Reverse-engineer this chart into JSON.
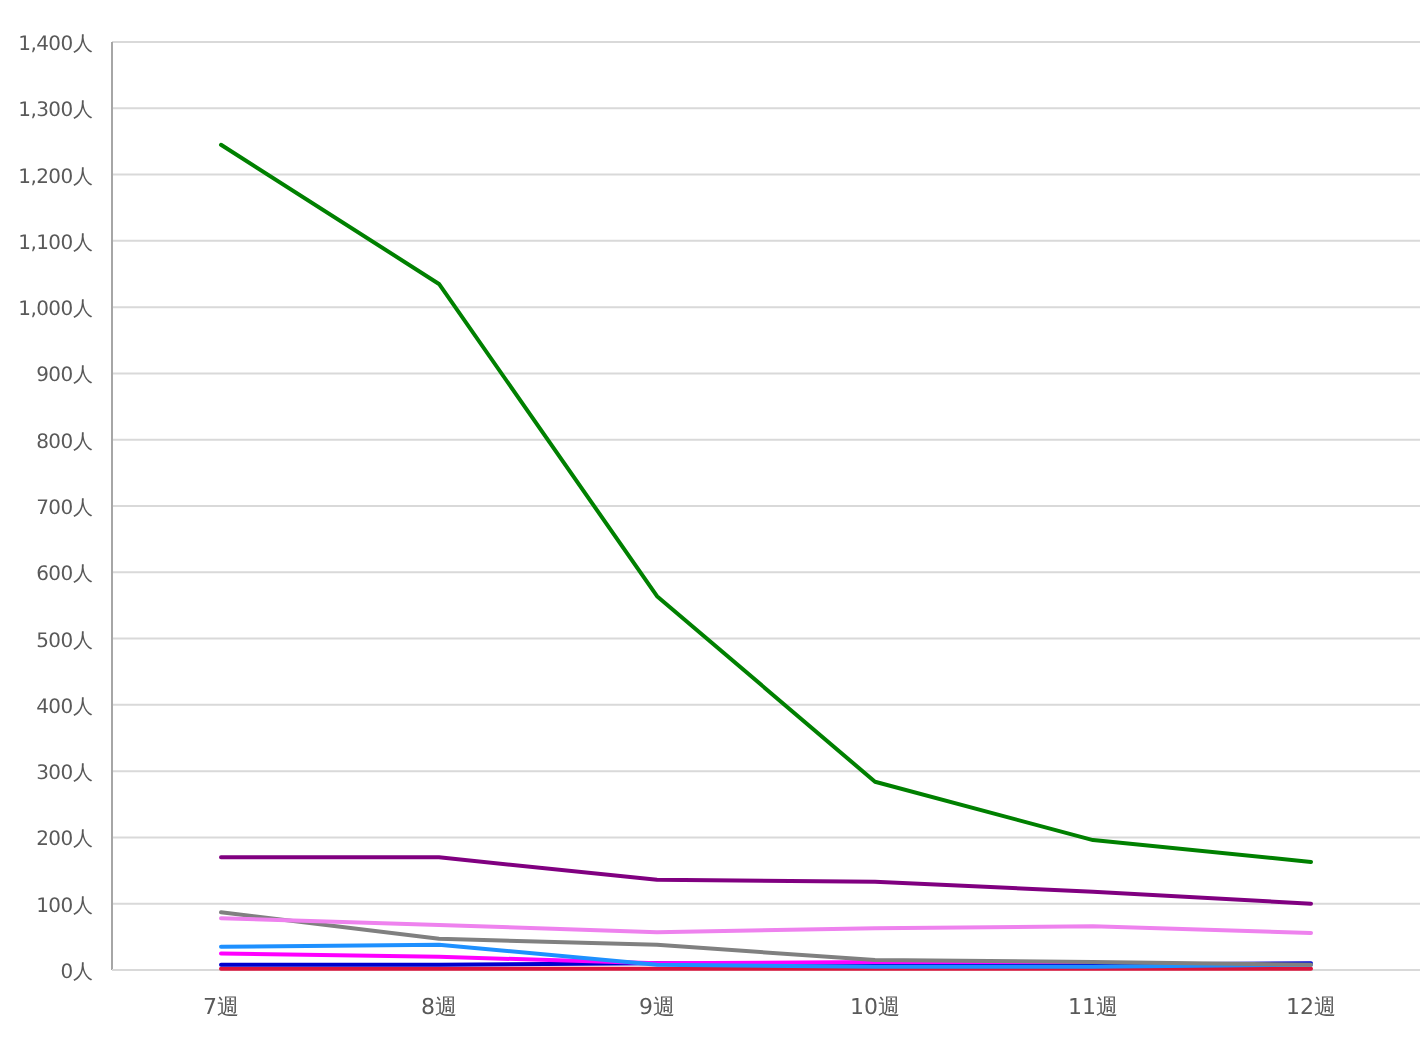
{
  "chart_data": {
    "type": "line",
    "categories": [
      "7週",
      "8週",
      "9週",
      "10週",
      "11週",
      "12週"
    ],
    "ylim": [
      0,
      1400
    ],
    "yticks": [
      {
        "value": 0,
        "label": "0人"
      },
      {
        "value": 100,
        "label": "100人"
      },
      {
        "value": 200,
        "label": "200人"
      },
      {
        "value": 300,
        "label": "300人"
      },
      {
        "value": 400,
        "label": "400人"
      },
      {
        "value": 500,
        "label": "500人"
      },
      {
        "value": 600,
        "label": "600人"
      },
      {
        "value": 700,
        "label": "700人"
      },
      {
        "value": 800,
        "label": "800人"
      },
      {
        "value": 900,
        "label": "900人"
      },
      {
        "value": 1000,
        "label": "1,000人"
      },
      {
        "value": 1100,
        "label": "1,100人"
      },
      {
        "value": 1200,
        "label": "1,200人"
      },
      {
        "value": 1300,
        "label": "1,300人"
      },
      {
        "value": 1400,
        "label": "1,400人"
      }
    ],
    "grid": "y",
    "marker": "none",
    "line_style": "solid",
    "series": [
      {
        "color": "#008000",
        "values": [
          1245,
          1035,
          564,
          284,
          196,
          163
        ]
      },
      {
        "color": "#800080",
        "values": [
          170,
          170,
          136,
          133,
          118,
          100
        ]
      },
      {
        "color": "#ee82ee",
        "values": [
          78,
          68,
          57,
          63,
          66,
          56
        ]
      },
      {
        "color": "#808080",
        "values": [
          87,
          47,
          38,
          15,
          12,
          8
        ]
      },
      {
        "color": "#1e90ff",
        "values": [
          35,
          38,
          8,
          5,
          5,
          8
        ]
      },
      {
        "color": "#ff00ff",
        "values": [
          25,
          20,
          10,
          12,
          12,
          null
        ]
      },
      {
        "color": "#0000cd",
        "values": [
          8,
          8,
          10,
          8,
          8,
          10
        ]
      },
      {
        "color": "#dc143c",
        "values": [
          2,
          2,
          2,
          2,
          2,
          2
        ]
      }
    ]
  }
}
